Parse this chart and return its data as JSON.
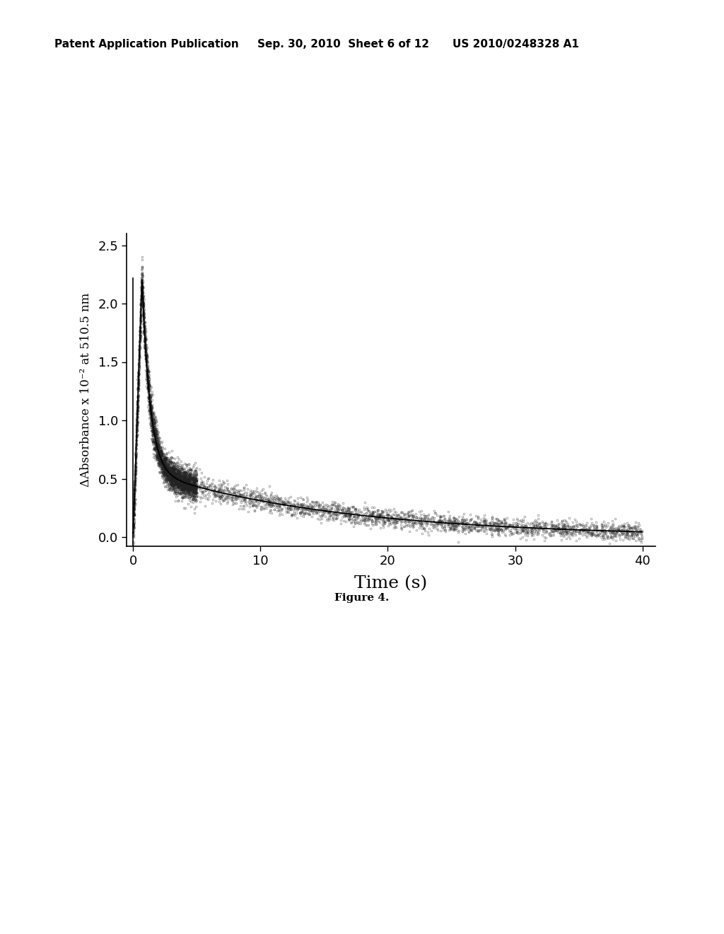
{
  "xlabel": "Time (s)",
  "ylabel": "ΔAbsorbance x 10⁻² at 510.5 nm",
  "xlim": [
    -0.5,
    41
  ],
  "ylim": [
    -0.08,
    2.6
  ],
  "xticks": [
    0,
    10,
    20,
    30,
    40
  ],
  "yticks": [
    0.0,
    0.5,
    1.0,
    1.5,
    2.0,
    2.5
  ],
  "header_left": "Patent Application Publication",
  "header_mid": "Sep. 30, 2010  Sheet 6 of 12",
  "header_right": "US 2010/0248328 A1",
  "figure_caption": "Figure 4.",
  "bg_color": "#ffffff",
  "noise_seed": 42,
  "peak_time": 0.7,
  "peak_value": 2.22,
  "A_fast": 1.65,
  "A_slow": 0.57,
  "decay_fast": 1.6,
  "decay_slow": 0.065,
  "n_scatter_points": 6000,
  "fit_line_color": "#000000",
  "scatter_color": "#000000",
  "xlabel_fontsize": 18,
  "ylabel_fontsize": 12,
  "tick_fontsize": 13,
  "header_fontsize": 11,
  "caption_fontsize": 11
}
